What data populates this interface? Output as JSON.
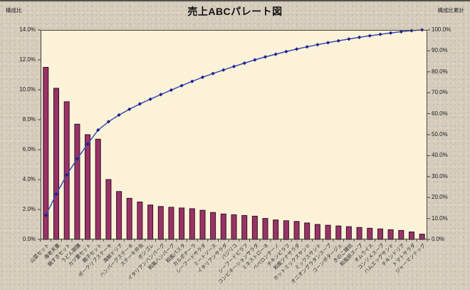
{
  "title": "売上ABCパレート図",
  "left_axis": {
    "caption": "構成比",
    "tick_labels": [
      "14.0%",
      "12.0%",
      "10.0%",
      "8.0%",
      "6.0%",
      "4.0%",
      "2.0%",
      "0.0%"
    ]
  },
  "right_axis": {
    "caption": "構成比累計",
    "tick_labels": [
      "100.0%",
      "90.0%",
      "80.0%",
      "70.0%",
      "60.0%",
      "50.0%",
      "40.0%",
      "30.0%",
      "20.0%",
      "10.0%",
      "0.0%"
    ]
  },
  "chart_data": {
    "type": "bar",
    "subtype": "pareto-combo",
    "title": "売上ABCパレート図",
    "grid": false,
    "legend": "none",
    "left_axis_label": "構成比",
    "right_axis_label": "構成比累計",
    "left_ylim": [
      0,
      14
    ],
    "right_ylim": [
      0,
      100
    ],
    "categories": [
      "山菜セット",
      "海老天重",
      "鍋すきセット",
      "うどん御膳",
      "カツ重セット",
      "親子セット",
      "ポークリブステーキ",
      "海鮮ドリア",
      "ハンバーグステーキ",
      "ステーキ弁当",
      "ボンゴレ",
      "イタリアンハンバーグ",
      "和風ハンバーグ",
      "和風パスタ",
      "カルボナーラ",
      "シーフードサラダ",
      "ミートソース",
      "イタリアンサラダ",
      "バジリコ",
      "シーフードピラフ",
      "コンビネーションサラダ",
      "ミネストローネ",
      "ペペロンチーノ",
      "チキンピラフ",
      "和風ツナサラダ",
      "ホットミックスサンド",
      "ミックスサンド",
      "オニオングラタンスープ",
      "コーンポタージュ",
      "きのこ雑炊",
      "和風卵スープ",
      "オムライス",
      "コンソメスープ",
      "ハムエッグサンド",
      "チキンドリア",
      "トマトサラダ",
      "ジャーマンドッグ"
    ],
    "series": [
      {
        "name": "構成比",
        "type": "bar",
        "axis": "left",
        "unit": "%",
        "values": [
          11.5,
          10.1,
          9.2,
          7.7,
          7.0,
          6.7,
          4.0,
          3.2,
          2.75,
          2.5,
          2.3,
          2.2,
          2.15,
          2.1,
          2.05,
          1.95,
          1.8,
          1.7,
          1.65,
          1.6,
          1.55,
          1.4,
          1.3,
          1.25,
          1.2,
          1.1,
          1.0,
          0.95,
          0.9,
          0.85,
          0.8,
          0.75,
          0.7,
          0.65,
          0.6,
          0.5,
          0.35
        ]
      },
      {
        "name": "構成比累計",
        "type": "line",
        "axis": "right",
        "unit": "%",
        "values": [
          11.5,
          21.6,
          30.8,
          38.5,
          45.5,
          52.2,
          56.2,
          59.4,
          62.15,
          64.65,
          66.95,
          69.15,
          71.3,
          73.4,
          75.45,
          77.4,
          79.2,
          80.9,
          82.55,
          84.15,
          85.7,
          87.1,
          88.4,
          89.65,
          90.85,
          91.95,
          92.95,
          93.9,
          94.8,
          95.65,
          96.45,
          97.2,
          97.9,
          98.55,
          99.15,
          99.65,
          100.0
        ]
      }
    ],
    "colors": {
      "bar_fill": "#993366",
      "bar_edge": "#33112b",
      "line": "#3b4eb3",
      "marker": "#1e1e90",
      "plot_bg": "#fbf2d8",
      "page_bg": "#d6cdbd",
      "axis": "#4a4437",
      "text": "#1a1a1a"
    }
  }
}
